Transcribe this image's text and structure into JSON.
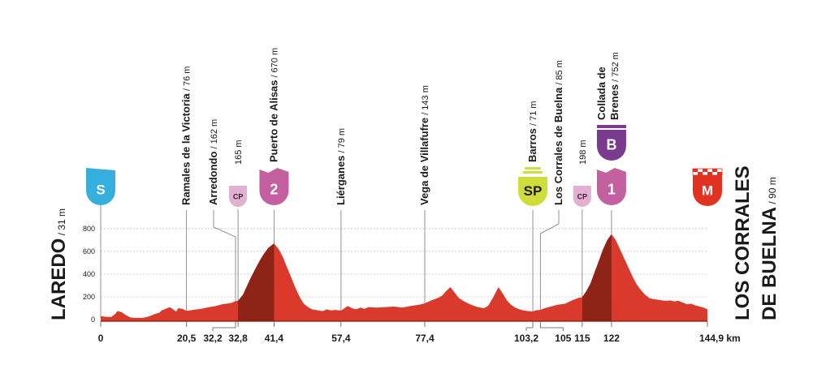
{
  "chart_data": {
    "type": "area",
    "x_unit": "km",
    "y_ticks": [
      0,
      200,
      400,
      600,
      800
    ],
    "xlim": [
      0,
      144.9
    ],
    "ylim": [
      0,
      850
    ],
    "profile": [
      [
        0,
        31
      ],
      [
        1,
        25
      ],
      [
        2.5,
        22
      ],
      [
        3.5,
        50
      ],
      [
        4,
        75
      ],
      [
        5,
        65
      ],
      [
        6,
        40
      ],
      [
        7,
        20
      ],
      [
        8,
        15
      ],
      [
        10,
        15
      ],
      [
        11,
        22
      ],
      [
        12,
        35
      ],
      [
        13,
        50
      ],
      [
        14,
        60
      ],
      [
        14.5,
        80
      ],
      [
        15.5,
        95
      ],
      [
        16.5,
        110
      ],
      [
        17.5,
        85
      ],
      [
        18,
        70
      ],
      [
        18.5,
        100
      ],
      [
        19.5,
        95
      ],
      [
        20.5,
        76
      ],
      [
        22,
        85
      ],
      [
        24,
        95
      ],
      [
        26,
        110
      ],
      [
        27.5,
        120
      ],
      [
        29,
        135
      ],
      [
        31,
        145
      ],
      [
        32.2,
        162
      ],
      [
        32.8,
        165
      ],
      [
        34,
        220
      ],
      [
        35,
        300
      ],
      [
        36,
        380
      ],
      [
        37,
        450
      ],
      [
        38,
        520
      ],
      [
        39,
        580
      ],
      [
        40,
        630
      ],
      [
        41.4,
        670
      ],
      [
        42.5,
        620
      ],
      [
        43.5,
        550
      ],
      [
        44.5,
        460
      ],
      [
        45.5,
        370
      ],
      [
        46.5,
        280
      ],
      [
        47.5,
        200
      ],
      [
        48.5,
        140
      ],
      [
        49.5,
        110
      ],
      [
        50.5,
        90
      ],
      [
        52,
        80
      ],
      [
        53,
        75
      ],
      [
        54,
        90
      ],
      [
        55,
        80
      ],
      [
        56,
        85
      ],
      [
        57.4,
        79
      ],
      [
        58,
        95
      ],
      [
        59,
        120
      ],
      [
        60,
        100
      ],
      [
        61,
        90
      ],
      [
        62,
        105
      ],
      [
        63,
        95
      ],
      [
        64,
        110
      ],
      [
        66,
        105
      ],
      [
        68,
        110
      ],
      [
        70,
        115
      ],
      [
        72,
        105
      ],
      [
        74,
        120
      ],
      [
        76,
        130
      ],
      [
        77.4,
        143
      ],
      [
        79,
        170
      ],
      [
        80.5,
        190
      ],
      [
        81.5,
        210
      ],
      [
        82.5,
        250
      ],
      [
        83.5,
        285
      ],
      [
        84.5,
        240
      ],
      [
        85.5,
        190
      ],
      [
        87,
        155
      ],
      [
        88.5,
        130
      ],
      [
        90,
        110
      ],
      [
        91.5,
        100
      ],
      [
        92.5,
        120
      ],
      [
        93.5,
        180
      ],
      [
        94.5,
        250
      ],
      [
        95,
        285
      ],
      [
        96,
        230
      ],
      [
        97,
        170
      ],
      [
        98,
        130
      ],
      [
        99,
        105
      ],
      [
        100,
        90
      ],
      [
        101,
        80
      ],
      [
        102,
        75
      ],
      [
        103.2,
        71
      ],
      [
        104,
        82
      ],
      [
        105,
        85
      ],
      [
        106,
        100
      ],
      [
        107,
        110
      ],
      [
        108,
        120
      ],
      [
        109,
        130
      ],
      [
        110,
        135
      ],
      [
        111,
        140
      ],
      [
        112,
        160
      ],
      [
        113,
        175
      ],
      [
        114,
        190
      ],
      [
        115,
        198
      ],
      [
        116,
        250
      ],
      [
        117,
        320
      ],
      [
        118,
        420
      ],
      [
        119,
        520
      ],
      [
        120,
        620
      ],
      [
        121,
        700
      ],
      [
        122,
        752
      ],
      [
        123,
        700
      ],
      [
        124,
        620
      ],
      [
        125,
        540
      ],
      [
        126,
        460
      ],
      [
        127,
        380
      ],
      [
        128,
        310
      ],
      [
        129,
        260
      ],
      [
        130,
        220
      ],
      [
        131,
        190
      ],
      [
        132,
        180
      ],
      [
        133,
        175
      ],
      [
        134,
        170
      ],
      [
        135,
        165
      ],
      [
        136,
        168
      ],
      [
        137,
        160
      ],
      [
        138,
        165
      ],
      [
        139,
        150
      ],
      [
        140,
        135
      ],
      [
        141,
        140
      ],
      [
        142,
        125
      ],
      [
        143,
        115
      ],
      [
        144,
        105
      ],
      [
        144.9,
        90
      ]
    ],
    "climbs": [
      {
        "from": 32.8,
        "to": 41.4
      },
      {
        "from": 115,
        "to": 122
      }
    ],
    "km_ticks": [
      {
        "label": "0",
        "km": 0
      },
      {
        "label": "20,5",
        "km": 20.5
      },
      {
        "label": "32,2",
        "km": 32.2,
        "shift": -28
      },
      {
        "label": "32,8",
        "km": 32.8
      },
      {
        "label": "41,4",
        "km": 41.4
      },
      {
        "label": "57,4",
        "km": 57.4
      },
      {
        "label": "77,4",
        "km": 77.4
      },
      {
        "label": "103,2",
        "km": 103.2,
        "shift": -8
      },
      {
        "label": "105",
        "km": 105,
        "shift": 28
      },
      {
        "label": "115",
        "km": 115
      },
      {
        "label": "122",
        "km": 122
      },
      {
        "label": "144,9 km",
        "km": 144.9
      }
    ],
    "start": {
      "name": "LAREDO",
      "alt": "/ 31 m",
      "badge": "S"
    },
    "finish": {
      "line1": "LOS CORRALES",
      "line2": "DE BUELNA",
      "alt": "/ 90 m",
      "badge": "M"
    },
    "waypoints": [
      {
        "km": 20.5,
        "alt": 76,
        "name": "Ramales de la Victoria",
        "alt_label": "/ 76 m"
      },
      {
        "km": 32.2,
        "alt": 162,
        "name": "Arredondo",
        "alt_label": "/ 162 m"
      },
      {
        "km": 32.8,
        "alt": 165,
        "name": "",
        "alt_label": "165 m",
        "badge": "CP",
        "badge_kind": "cp"
      },
      {
        "km": 41.4,
        "alt": 670,
        "name": "Puerto de Alisas",
        "alt_label": "/ 670 m",
        "badge": "2",
        "badge_kind": "cat2"
      },
      {
        "km": 57.4,
        "alt": 79,
        "name": "Liérganes",
        "alt_label": "/ 79 m"
      },
      {
        "km": 77.4,
        "alt": 143,
        "name": "Vega de Villafufre",
        "alt_label": "/ 143 m"
      },
      {
        "km": 103.2,
        "alt": 71,
        "name": "Barros",
        "alt_label": "/ 71 m",
        "badge": "SP",
        "badge_kind": "sprint"
      },
      {
        "km": 105,
        "alt": 85,
        "name": "Los Corrales de Buelna",
        "alt_label": "/ 85 m"
      },
      {
        "km": 115,
        "alt": 198,
        "name": "",
        "alt_label": "198 m",
        "badge": "CP",
        "badge_kind": "cp"
      },
      {
        "km": 122,
        "alt": 752,
        "name": "Collada de",
        "name2": "Brenes",
        "alt_label": "/ 752 m",
        "badge": "1",
        "badge_kind": "cat1",
        "badge2": "B",
        "badge2_kind": "bonus"
      }
    ],
    "colors": {
      "fill": "#d93a2b",
      "fill_dark": "#8e2418",
      "cp": "#e2b0d0",
      "cat": "#c4609f",
      "bonus": "#7a3a8e",
      "sprint": "#d0dc3a",
      "start": "#36aede",
      "finish": "#e23322",
      "grid": "#bbbbbb",
      "text": "#1a1a1a"
    }
  }
}
